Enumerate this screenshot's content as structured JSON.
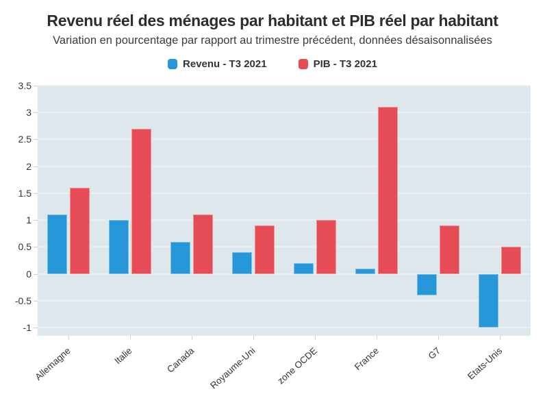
{
  "chart_data": {
    "type": "bar",
    "title": "Revenu réel des ménages par habitant et PIB réel par habitant",
    "subtitle": "Variation en pourcentage par rapport au trimestre précédent, données désaisonnalisées",
    "categories": [
      "Allemagne",
      "Italie",
      "Canada",
      "Royaume-Uni",
      "zone OCDE",
      "France",
      "G7",
      "Etats-Unis"
    ],
    "series": [
      {
        "name": "Revenu - T3 2021",
        "color": "#2697d9",
        "values": [
          1.1,
          1.0,
          0.6,
          0.4,
          0.2,
          0.1,
          -0.4,
          -1.0
        ]
      },
      {
        "name": "PIB - T3 2021",
        "color": "#e64c55",
        "values": [
          1.6,
          2.7,
          1.1,
          0.9,
          1.0,
          3.1,
          0.9,
          0.5
        ]
      }
    ],
    "xlabel": "",
    "ylabel": "",
    "ylim": [
      -1.15,
      3.5
    ],
    "yticks": [
      -1,
      -0.5,
      0,
      0.5,
      1,
      1.5,
      2,
      2.5,
      3,
      3.5
    ],
    "ytick_labels": [
      "-1",
      "-0.5",
      "0",
      "0.5",
      "1",
      "1.5",
      "2",
      "2.5",
      "3",
      "3.5"
    ],
    "grid": true,
    "legend_position": "top-center",
    "colors": {
      "plot_background": "#dde7ec",
      "gridline": "#e9eff3",
      "tick": "#cfcfcf",
      "axis_text": "#333333",
      "title_text": "#2d2d2d",
      "subtitle_text": "#3c3c3c"
    }
  }
}
